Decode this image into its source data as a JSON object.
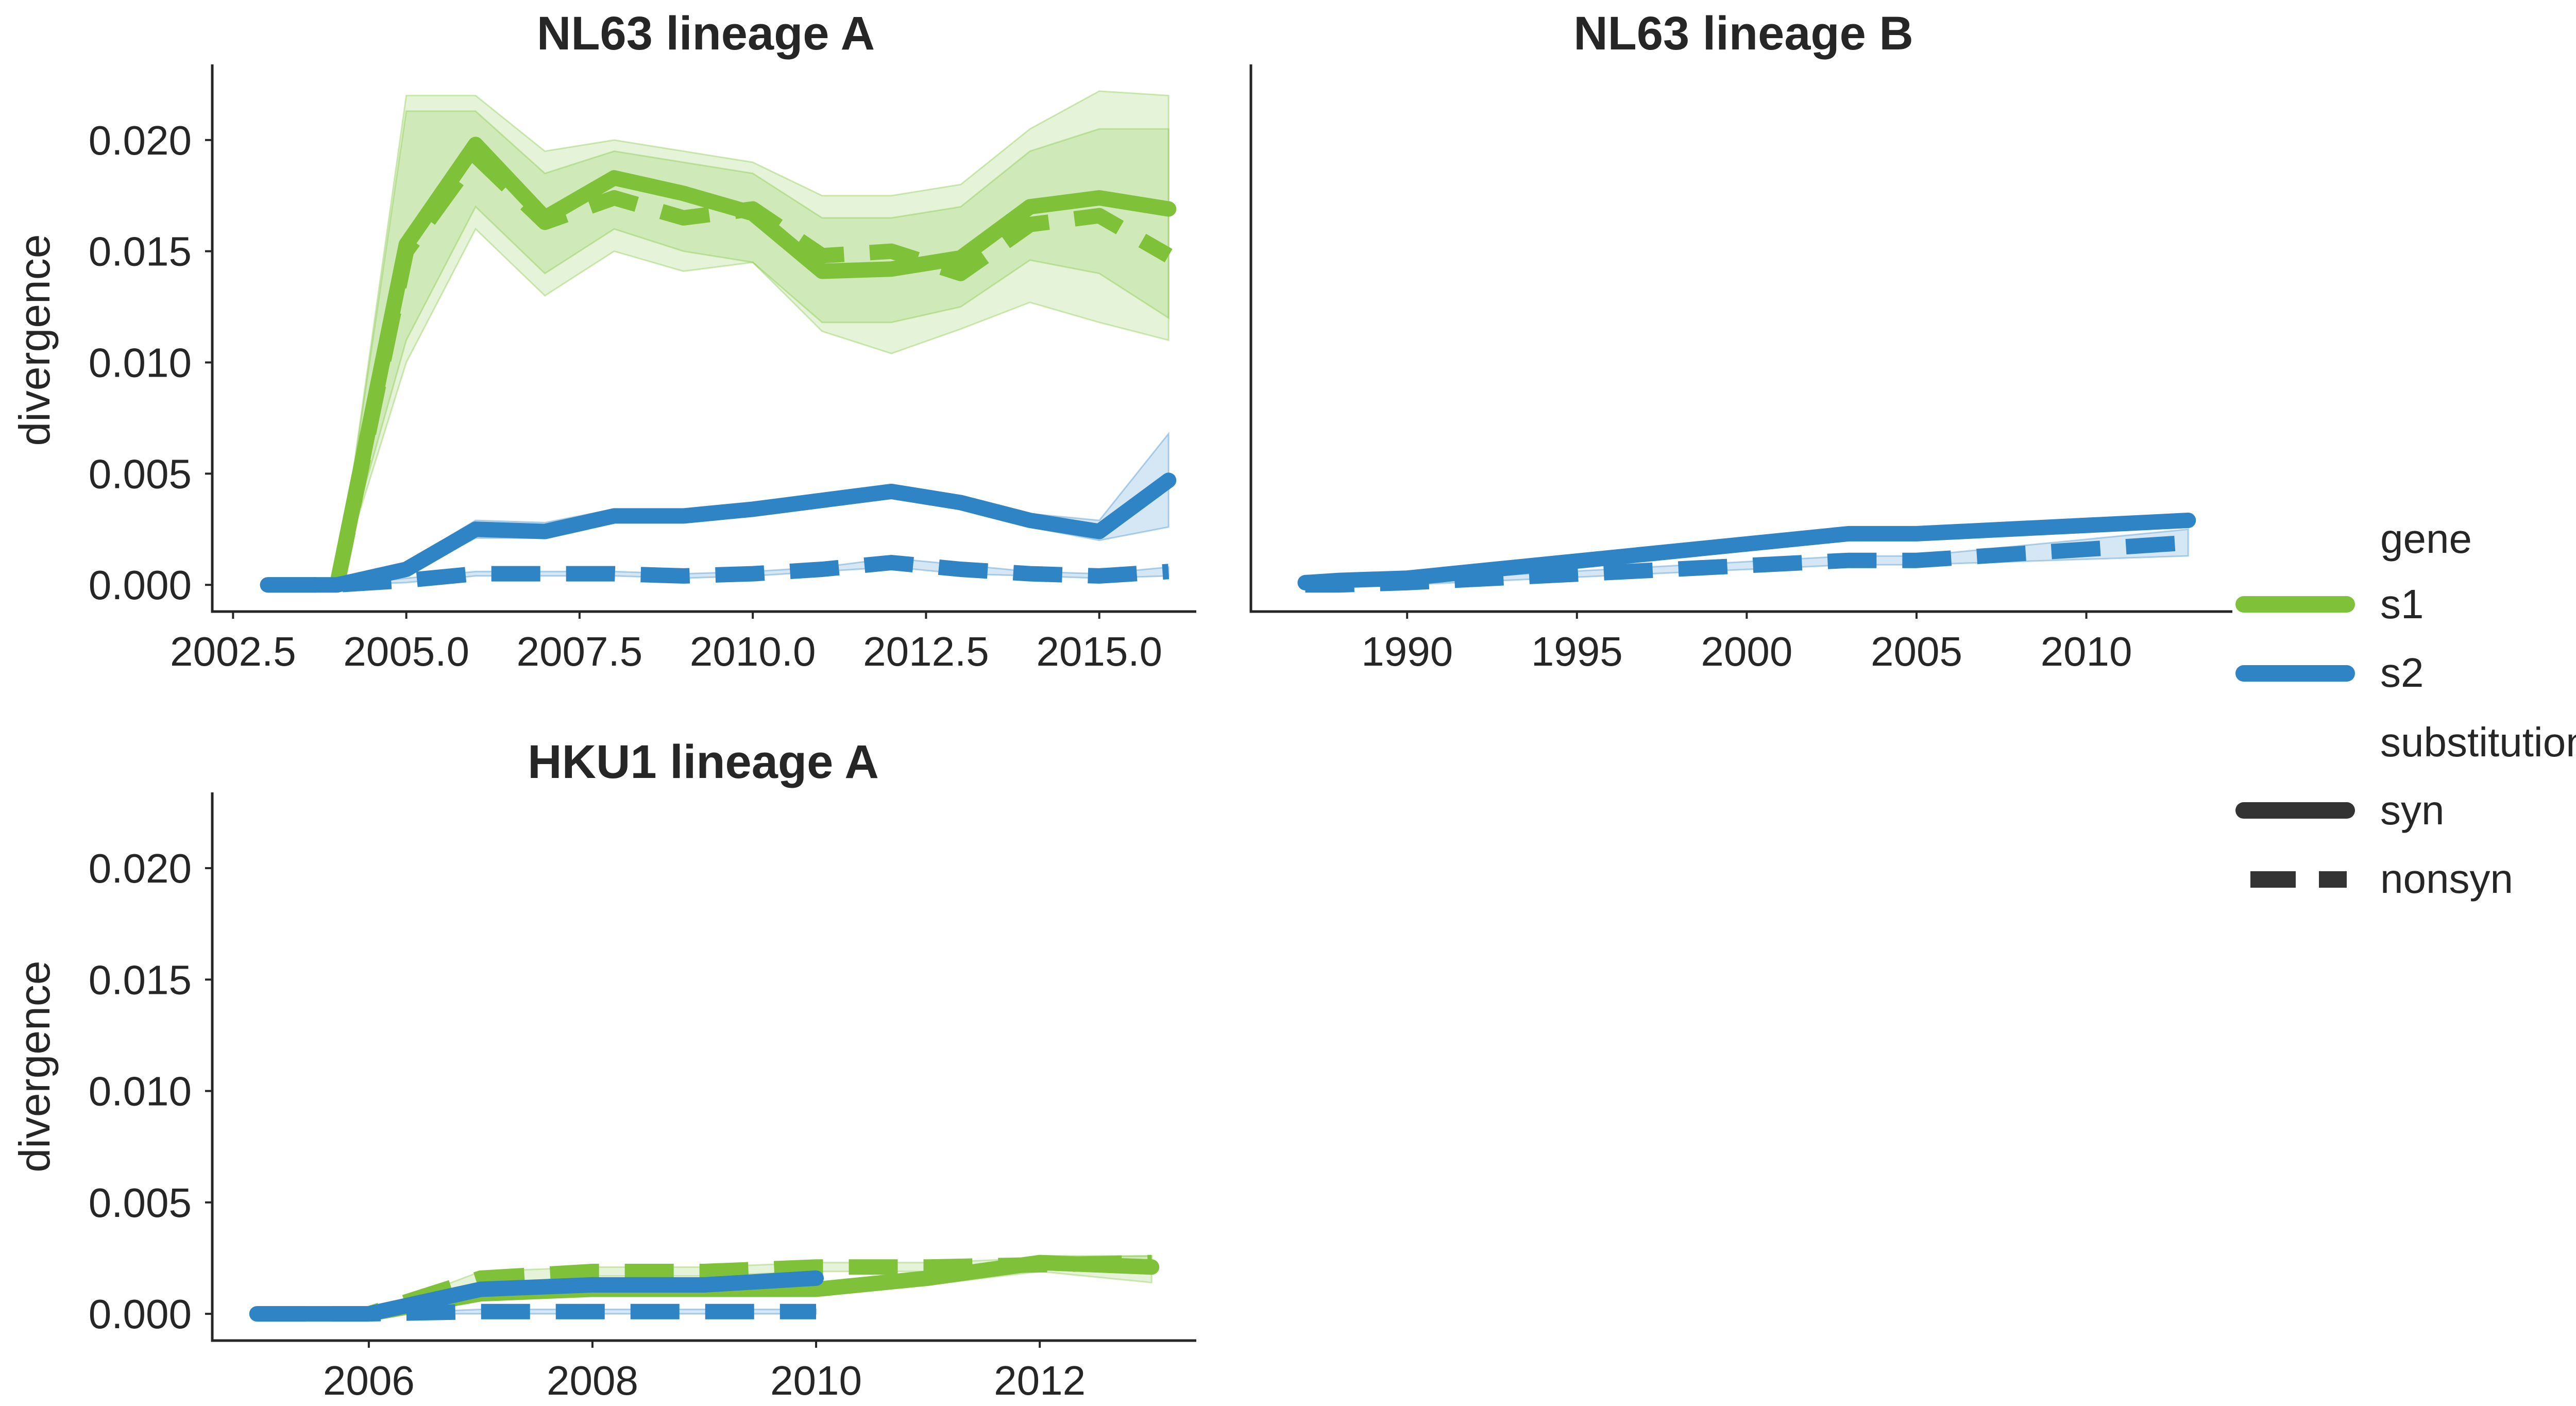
{
  "figure": {
    "legend": {
      "placement": "right",
      "gene_heading": "gene",
      "substitution_heading": "substitution",
      "entries": [
        {
          "key": "s1",
          "label": "s1",
          "color": "#7fc23a",
          "style": "solid"
        },
        {
          "key": "s2",
          "label": "s2",
          "color": "#2f84c6",
          "style": "solid"
        },
        {
          "key": "syn",
          "label": "syn",
          "color": "#333333",
          "style": "solid"
        },
        {
          "key": "nonsyn",
          "label": "nonsyn",
          "color": "#333333",
          "style": "dashed"
        }
      ]
    },
    "colors": {
      "s1": "#7fc23a",
      "s2": "#2f84c6",
      "axis": "#262626"
    }
  },
  "chart_data": [
    {
      "type": "line",
      "title": "NL63 lineage A",
      "xlabel": "",
      "ylabel": "divergence",
      "xlim": [
        2002.2,
        2016.4
      ],
      "ylim": [
        -0.0012,
        0.0234
      ],
      "xticks": [
        2002.5,
        2005.0,
        2007.5,
        2010.0,
        2012.5,
        2015.0
      ],
      "xtick_labels": [
        "2002.5",
        "2005.0",
        "2007.5",
        "2010.0",
        "2012.5",
        "2015.0"
      ],
      "yticks": [
        0.0,
        0.005,
        0.01,
        0.015,
        0.02
      ],
      "ytick_labels": [
        "0.000",
        "0.005",
        "0.010",
        "0.015",
        "0.020"
      ],
      "grid": false,
      "series": [
        {
          "name": "s1 syn",
          "gene": "s1",
          "substitution": "syn",
          "x": [
            2003,
            2004,
            2005,
            2006,
            2007,
            2008,
            2009,
            2010,
            2011,
            2012,
            2013,
            2014,
            2015,
            2016
          ],
          "y": [
            0.0,
            0.0,
            0.0153,
            0.0198,
            0.0165,
            0.0183,
            0.0176,
            0.0167,
            0.0141,
            0.0142,
            0.0147,
            0.017,
            0.0174,
            0.0169
          ],
          "ci_lower": [
            0.0,
            0.0,
            0.011,
            0.017,
            0.014,
            0.016,
            0.015,
            0.0145,
            0.0118,
            0.0118,
            0.0125,
            0.0146,
            0.014,
            0.012
          ],
          "ci_upper": [
            0.0,
            0.0,
            0.0213,
            0.0213,
            0.0185,
            0.0195,
            0.019,
            0.0185,
            0.0165,
            0.0165,
            0.017,
            0.0195,
            0.0205,
            0.0205
          ]
        },
        {
          "name": "s1 nonsyn",
          "gene": "s1",
          "substitution": "nonsyn",
          "x": [
            2003,
            2004,
            2005,
            2006,
            2007,
            2008,
            2009,
            2010,
            2011,
            2012,
            2013,
            2014,
            2015,
            2016
          ],
          "y": [
            0.0,
            0.0,
            0.015,
            0.0193,
            0.0163,
            0.0174,
            0.0165,
            0.0169,
            0.0148,
            0.015,
            0.014,
            0.0162,
            0.0166,
            0.0148
          ],
          "ci_lower": [
            0.0,
            0.0,
            0.01,
            0.016,
            0.013,
            0.015,
            0.0141,
            0.0145,
            0.0114,
            0.0104,
            0.0115,
            0.0127,
            0.0118,
            0.011
          ],
          "ci_upper": [
            0.0,
            0.0,
            0.022,
            0.022,
            0.0195,
            0.02,
            0.0195,
            0.019,
            0.0175,
            0.0175,
            0.018,
            0.0205,
            0.0222,
            0.022
          ]
        },
        {
          "name": "s2 syn",
          "gene": "s2",
          "substitution": "syn",
          "x": [
            2003,
            2004,
            2005,
            2006,
            2007,
            2008,
            2009,
            2010,
            2011,
            2012,
            2013,
            2014,
            2015,
            2016
          ],
          "y": [
            0.0,
            0.0,
            0.0007,
            0.0025,
            0.0024,
            0.0031,
            0.0031,
            0.0034,
            0.0038,
            0.0042,
            0.0037,
            0.0029,
            0.0024,
            0.0047
          ],
          "ci_lower": [
            0.0,
            0.0,
            0.0005,
            0.0021,
            0.0021,
            0.0028,
            0.0028,
            0.0031,
            0.0035,
            0.0039,
            0.0034,
            0.0026,
            0.002,
            0.0026
          ],
          "ci_upper": [
            0.0,
            0.0,
            0.001,
            0.0029,
            0.0028,
            0.0034,
            0.0034,
            0.0037,
            0.0041,
            0.0045,
            0.004,
            0.0032,
            0.0029,
            0.0068
          ]
        },
        {
          "name": "s2 nonsyn",
          "gene": "s2",
          "substitution": "nonsyn",
          "x": [
            2003,
            2004,
            2005,
            2006,
            2007,
            2008,
            2009,
            2010,
            2011,
            2012,
            2013,
            2014,
            2015,
            2016
          ],
          "y": [
            0.0,
            0.0,
            0.0002,
            0.0005,
            0.0005,
            0.0005,
            0.0004,
            0.0005,
            0.0007,
            0.001,
            0.0007,
            0.0005,
            0.0004,
            0.0006
          ],
          "ci_lower": [
            0.0,
            0.0,
            0.0001,
            0.0004,
            0.0004,
            0.0004,
            0.0003,
            0.0004,
            0.0006,
            0.0008,
            0.0005,
            0.0004,
            0.0003,
            0.0004
          ],
          "ci_upper": [
            0.0,
            0.0,
            0.0003,
            0.0006,
            0.0006,
            0.0006,
            0.0005,
            0.0006,
            0.0008,
            0.0012,
            0.0009,
            0.0006,
            0.0005,
            0.0008
          ]
        }
      ]
    },
    {
      "type": "line",
      "title": "NL63 lineage B",
      "xlabel": "",
      "ylabel": "",
      "xlim": [
        1985.4,
        2014.3
      ],
      "ylim": [
        -0.0012,
        0.0234
      ],
      "xticks": [
        1990,
        1995,
        2000,
        2005,
        2010
      ],
      "xtick_labels": [
        "1990",
        "1995",
        "2000",
        "2005",
        "2010"
      ],
      "yticks": [],
      "ytick_labels": [],
      "grid": false,
      "series": [
        {
          "name": "s2 syn",
          "gene": "s2",
          "substitution": "syn",
          "x": [
            1987,
            1988,
            1990,
            2003,
            2005,
            2013
          ],
          "y": [
            0.0001,
            0.0002,
            0.0003,
            0.0023,
            0.0023,
            0.0029
          ],
          "ci_lower": [
            0.0,
            0.0001,
            0.0002,
            0.0021,
            0.0021,
            0.0026
          ],
          "ci_upper": [
            0.0002,
            0.0003,
            0.0004,
            0.0025,
            0.0025,
            0.0031
          ]
        },
        {
          "name": "s2 nonsyn",
          "gene": "s2",
          "substitution": "nonsyn",
          "x": [
            1987,
            1988,
            1990,
            2003,
            2005,
            2013
          ],
          "y": [
            0.0,
            0.0,
            0.0001,
            0.0011,
            0.0011,
            0.0019
          ],
          "ci_lower": [
            0.0,
            0.0,
            0.0,
            0.0009,
            0.0009,
            0.0013
          ],
          "ci_upper": [
            0.0001,
            0.0001,
            0.0002,
            0.0013,
            0.0013,
            0.0025
          ]
        }
      ]
    },
    {
      "type": "line",
      "title": "HKU1 lineage A",
      "xlabel": "",
      "ylabel": "divergence",
      "xlim": [
        2004.6,
        2013.4
      ],
      "ylim": [
        -0.0012,
        0.0234
      ],
      "xticks": [
        2006,
        2008,
        2010,
        2012
      ],
      "xtick_labels": [
        "2006",
        "2008",
        "2010",
        "2012"
      ],
      "yticks": [
        0.0,
        0.005,
        0.01,
        0.015,
        0.02
      ],
      "ytick_labels": [
        "0.000",
        "0.005",
        "0.010",
        "0.015",
        "0.020"
      ],
      "grid": false,
      "series": [
        {
          "name": "s1 syn",
          "gene": "s1",
          "substitution": "syn",
          "x": [
            2005,
            2006,
            2007,
            2008,
            2009,
            2010,
            2011,
            2012,
            2013
          ],
          "y": [
            0.0,
            0.0,
            0.0009,
            0.0011,
            0.0011,
            0.0011,
            0.0016,
            0.0023,
            0.0021
          ],
          "ci_lower": [
            0.0,
            0.0,
            0.0006,
            0.0008,
            0.0008,
            0.0008,
            0.0013,
            0.0019,
            0.0014
          ],
          "ci_upper": [
            0.0,
            0.0,
            0.0012,
            0.0014,
            0.0014,
            0.0014,
            0.0019,
            0.0026,
            0.0026
          ]
        },
        {
          "name": "s1 nonsyn",
          "gene": "s1",
          "substitution": "nonsyn",
          "x": [
            2005,
            2006,
            2007,
            2008,
            2009,
            2010,
            2011,
            2012,
            2013
          ],
          "y": [
            0.0,
            0.0,
            0.0016,
            0.0019,
            0.0019,
            0.0021,
            0.0021,
            0.0022,
            0.0023
          ],
          "ci_lower": [
            0.0,
            0.0,
            0.0013,
            0.0017,
            0.0017,
            0.0019,
            0.0019,
            0.002,
            0.0019
          ],
          "ci_upper": [
            0.0,
            0.0,
            0.0019,
            0.0021,
            0.0021,
            0.0023,
            0.0023,
            0.0025,
            0.0026
          ]
        },
        {
          "name": "s2 syn",
          "gene": "s2",
          "substitution": "syn",
          "x": [
            2005,
            2006,
            2007,
            2008,
            2009,
            2010
          ],
          "y": [
            0.0,
            0.0,
            0.0011,
            0.0013,
            0.0013,
            0.0016
          ],
          "ci_lower": [
            0.0,
            0.0,
            0.0008,
            0.001,
            0.001,
            0.0013
          ],
          "ci_upper": [
            0.0,
            0.0,
            0.0014,
            0.0016,
            0.0016,
            0.0019
          ]
        },
        {
          "name": "s2 nonsyn",
          "gene": "s2",
          "substitution": "nonsyn",
          "x": [
            2005,
            2006,
            2007,
            2008,
            2009,
            2010
          ],
          "y": [
            0.0,
            0.0,
            0.0001,
            0.0001,
            0.0001,
            0.0001
          ],
          "ci_lower": [
            0.0,
            0.0,
            0.0,
            0.0,
            0.0,
            0.0
          ],
          "ci_upper": [
            0.0,
            0.0,
            0.0002,
            0.0002,
            0.0002,
            0.0002
          ]
        }
      ]
    }
  ]
}
